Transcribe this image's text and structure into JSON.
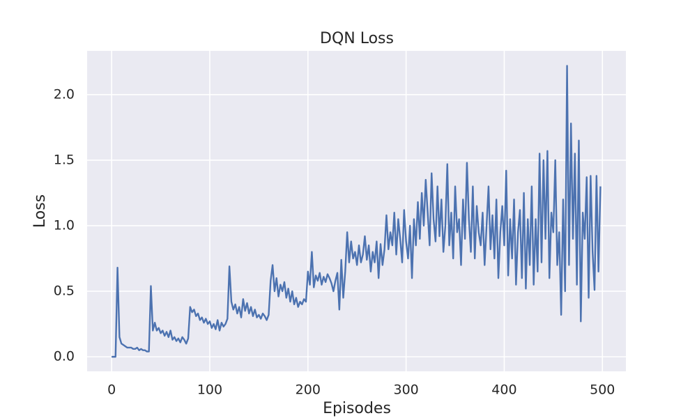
{
  "chart_data": {
    "type": "line",
    "title": "DQN Loss",
    "x_label": "Episodes",
    "y_label": "Loss",
    "x": [
      0,
      2,
      4,
      6,
      8,
      10,
      12,
      14,
      16,
      18,
      20,
      22,
      24,
      26,
      28,
      30,
      32,
      34,
      36,
      38,
      40,
      42,
      44,
      46,
      48,
      50,
      52,
      54,
      56,
      58,
      60,
      62,
      64,
      66,
      68,
      70,
      72,
      74,
      76,
      78,
      80,
      82,
      84,
      86,
      88,
      90,
      92,
      94,
      96,
      98,
      100,
      102,
      104,
      106,
      108,
      110,
      112,
      114,
      116,
      118,
      120,
      122,
      124,
      126,
      128,
      130,
      132,
      134,
      136,
      138,
      140,
      142,
      144,
      146,
      148,
      150,
      152,
      154,
      156,
      158,
      160,
      162,
      164,
      166,
      168,
      170,
      172,
      174,
      176,
      178,
      180,
      182,
      184,
      186,
      188,
      190,
      192,
      194,
      196,
      198,
      200,
      202,
      204,
      206,
      208,
      210,
      212,
      214,
      216,
      218,
      220,
      222,
      224,
      226,
      228,
      230,
      232,
      234,
      236,
      238,
      240,
      242,
      244,
      246,
      248,
      250,
      252,
      254,
      256,
      258,
      260,
      262,
      264,
      266,
      268,
      270,
      272,
      274,
      276,
      278,
      280,
      282,
      284,
      286,
      288,
      290,
      292,
      294,
      296,
      298,
      300,
      302,
      304,
      306,
      308,
      310,
      312,
      314,
      316,
      318,
      320,
      322,
      324,
      326,
      328,
      330,
      332,
      334,
      336,
      338,
      340,
      342,
      344,
      346,
      348,
      350,
      352,
      354,
      356,
      358,
      360,
      362,
      364,
      366,
      368,
      370,
      372,
      374,
      376,
      378,
      380,
      382,
      384,
      386,
      388,
      390,
      392,
      394,
      396,
      398,
      400,
      402,
      404,
      406,
      408,
      410,
      412,
      414,
      416,
      418,
      420,
      422,
      424,
      426,
      428,
      430,
      432,
      434,
      436,
      438,
      440,
      442,
      444,
      446,
      448,
      450,
      452,
      454,
      456,
      458,
      460,
      462,
      464,
      466,
      468,
      470,
      472,
      474,
      476,
      478,
      480,
      482,
      484,
      486,
      488,
      490,
      492,
      494,
      496,
      498
    ],
    "series": [
      {
        "color": "#4c72b0",
        "values": [
          0,
          0,
          0,
          0.68,
          0.15,
          0.1,
          0.09,
          0.08,
          0.07,
          0.07,
          0.07,
          0.06,
          0.06,
          0.07,
          0.05,
          0.06,
          0.05,
          0.05,
          0.04,
          0.04,
          0.54,
          0.2,
          0.26,
          0.2,
          0.22,
          0.18,
          0.2,
          0.16,
          0.19,
          0.15,
          0.2,
          0.13,
          0.15,
          0.12,
          0.14,
          0.11,
          0.15,
          0.13,
          0.1,
          0.14,
          0.38,
          0.34,
          0.36,
          0.31,
          0.33,
          0.28,
          0.3,
          0.26,
          0.29,
          0.25,
          0.27,
          0.22,
          0.25,
          0.21,
          0.28,
          0.2,
          0.26,
          0.23,
          0.25,
          0.29,
          0.69,
          0.42,
          0.36,
          0.4,
          0.33,
          0.38,
          0.3,
          0.44,
          0.35,
          0.41,
          0.33,
          0.38,
          0.31,
          0.36,
          0.3,
          0.32,
          0.29,
          0.33,
          0.31,
          0.28,
          0.32,
          0.58,
          0.7,
          0.5,
          0.6,
          0.46,
          0.55,
          0.5,
          0.57,
          0.45,
          0.52,
          0.42,
          0.5,
          0.4,
          0.45,
          0.38,
          0.42,
          0.4,
          0.44,
          0.42,
          0.65,
          0.55,
          0.8,
          0.53,
          0.62,
          0.58,
          0.64,
          0.55,
          0.61,
          0.57,
          0.63,
          0.6,
          0.56,
          0.5,
          0.58,
          0.64,
          0.36,
          0.74,
          0.45,
          0.65,
          0.95,
          0.72,
          0.88,
          0.75,
          0.8,
          0.7,
          0.85,
          0.72,
          0.78,
          0.92,
          0.74,
          0.85,
          0.65,
          0.8,
          0.72,
          0.88,
          0.6,
          0.86,
          0.7,
          0.82,
          1.08,
          0.82,
          0.95,
          0.85,
          1.1,
          0.78,
          1.05,
          0.9,
          0.72,
          1.12,
          0.88,
          0.75,
          1.0,
          0.6,
          1.05,
          0.85,
          1.18,
          0.9,
          1.25,
          1.0,
          1.35,
          1.1,
          0.85,
          1.4,
          1.05,
          0.88,
          1.3,
          0.92,
          1.2,
          0.8,
          1.0,
          1.47,
          0.85,
          1.1,
          0.75,
          1.3,
          0.95,
          1.05,
          0.7,
          1.2,
          0.9,
          1.48,
          1.05,
          0.8,
          1.3,
          0.75,
          1.15,
          0.95,
          0.85,
          1.1,
          0.7,
          1.0,
          1.3,
          0.82,
          1.08,
          0.75,
          1.2,
          0.6,
          0.95,
          1.15,
          0.85,
          1.42,
          0.62,
          1.05,
          0.75,
          1.2,
          0.55,
          0.95,
          1.12,
          0.6,
          1.25,
          0.52,
          1.05,
          0.7,
          1.3,
          0.55,
          1.05,
          0.65,
          1.55,
          0.72,
          1.5,
          0.9,
          1.57,
          0.6,
          1.1,
          0.95,
          1.5,
          0.7,
          0.95,
          0.32,
          1.2,
          0.5,
          2.22,
          0.7,
          1.78,
          0.9,
          1.55,
          0.55,
          1.65,
          0.27,
          1.1,
          0.9,
          1.37,
          0.45,
          1.38,
          0.8,
          0.51,
          1.38,
          0.65,
          1.3
        ]
      }
    ],
    "xlim": [
      -24.95,
      523.95
    ],
    "xticks": [
      0,
      100,
      200,
      300,
      400,
      500
    ],
    "ylim": [
      -0.111,
      2.334
    ],
    "yticks": [
      0.0,
      0.5,
      1.0,
      1.5,
      2.0
    ],
    "grid": true
  }
}
